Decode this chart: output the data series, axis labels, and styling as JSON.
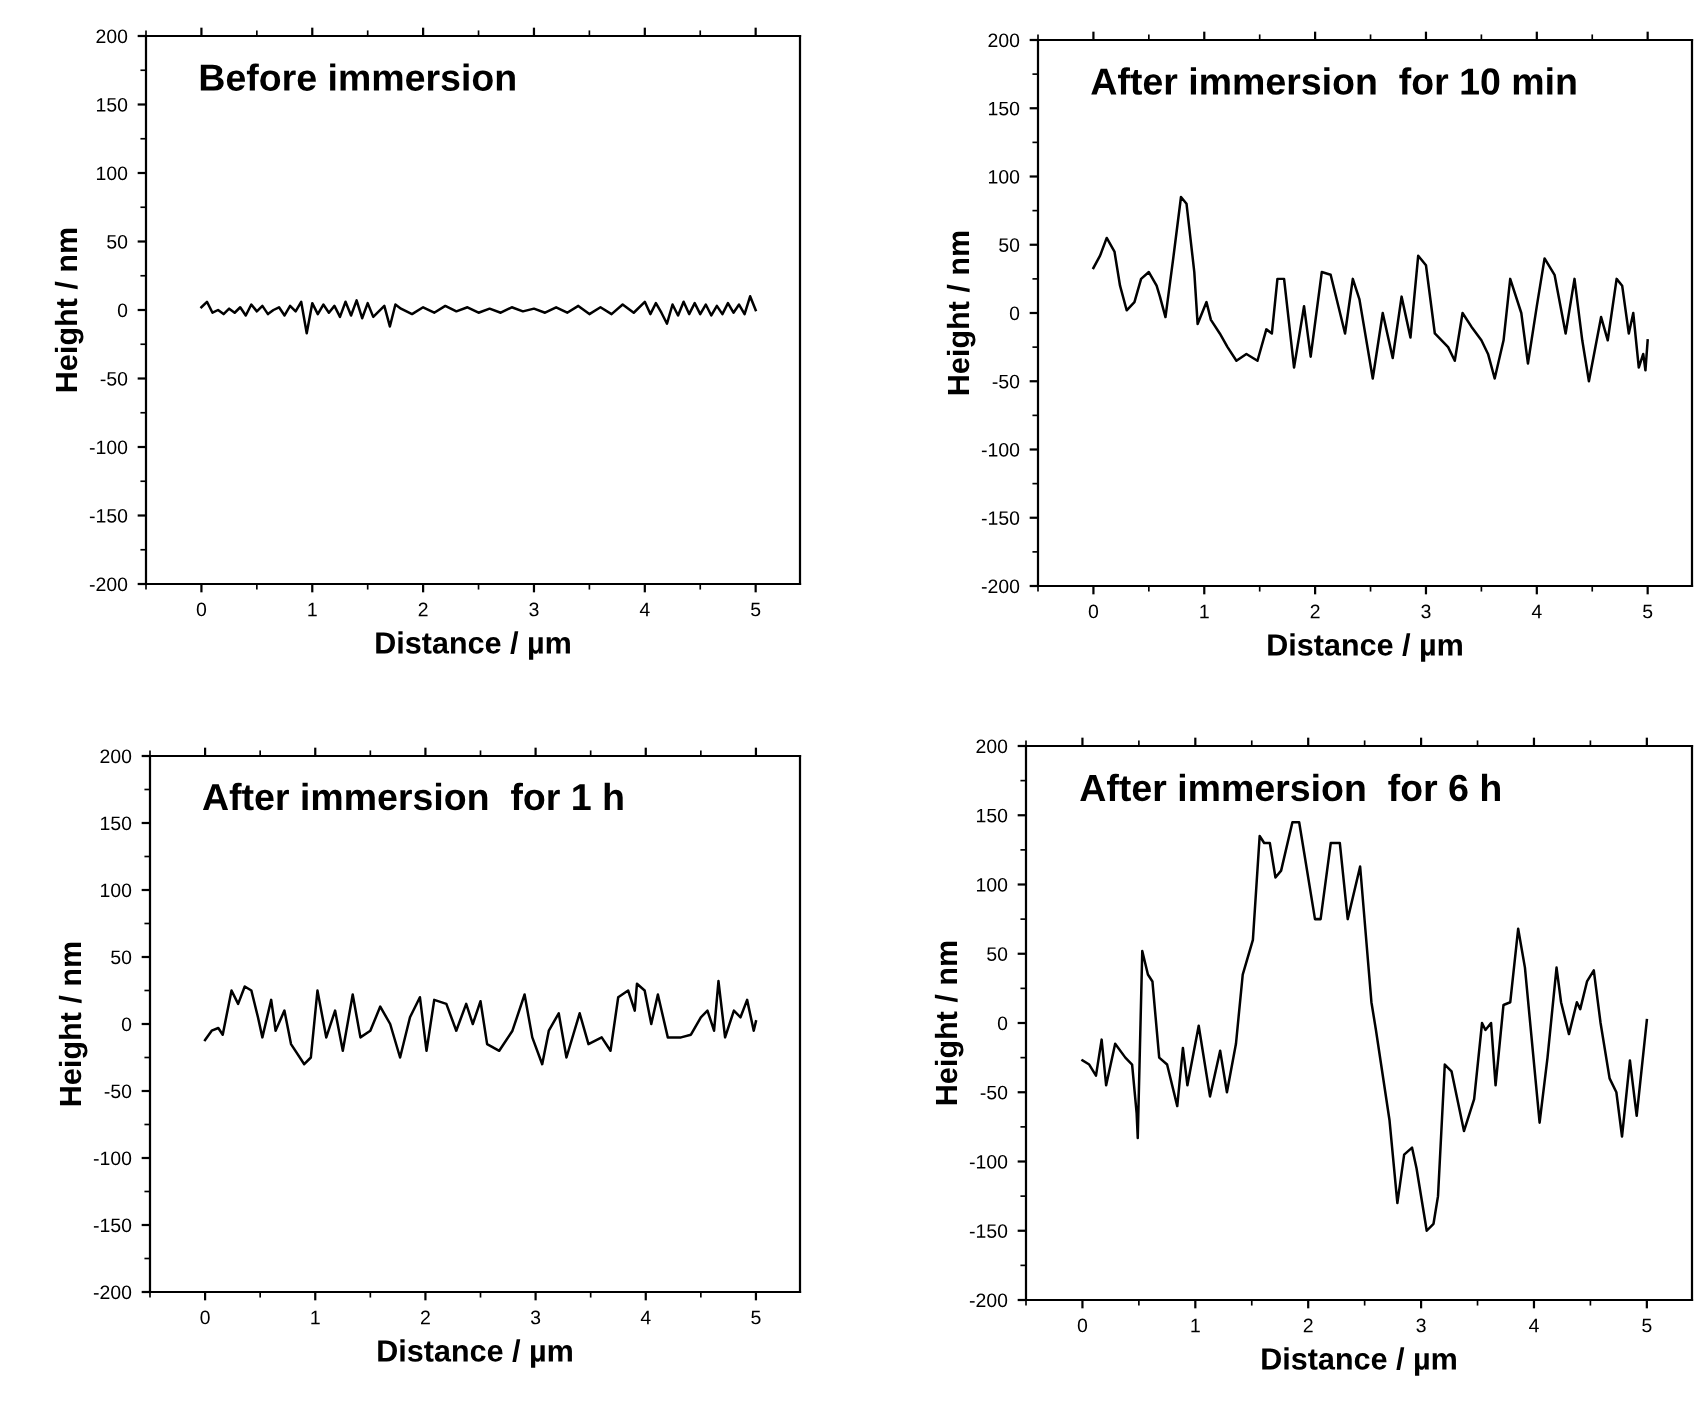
{
  "chart_data": [
    {
      "type": "line",
      "title": "Before immersion",
      "xlabel": "Distance / µm",
      "ylabel": "Height / nm",
      "xlim": [
        -0.5,
        5.4
      ],
      "ylim": [
        -200,
        200
      ],
      "xticks": [
        0,
        1,
        2,
        3,
        4,
        5
      ],
      "yticks": [
        -200,
        -150,
        -100,
        -50,
        0,
        50,
        100,
        150,
        200
      ],
      "grid": false,
      "marker": "none",
      "line_style": "solid",
      "series": [
        {
          "color": "#000000",
          "x": [
            0,
            0.05,
            0.1,
            0.15,
            0.2,
            0.25,
            0.3,
            0.35,
            0.4,
            0.45,
            0.5,
            0.55,
            0.6,
            0.65,
            0.7,
            0.75,
            0.8,
            0.85,
            0.9,
            0.95,
            1.0,
            1.05,
            1.1,
            1.15,
            1.2,
            1.25,
            1.3,
            1.35,
            1.4,
            1.45,
            1.5,
            1.55,
            1.6,
            1.65,
            1.7,
            1.75,
            1.8,
            1.9,
            2.0,
            2.1,
            2.2,
            2.3,
            2.4,
            2.5,
            2.6,
            2.7,
            2.8,
            2.9,
            3.0,
            3.1,
            3.2,
            3.3,
            3.4,
            3.5,
            3.6,
            3.7,
            3.8,
            3.9,
            4.0,
            4.05,
            4.1,
            4.15,
            4.2,
            4.25,
            4.3,
            4.35,
            4.4,
            4.45,
            4.5,
            4.55,
            4.6,
            4.65,
            4.7,
            4.75,
            4.8,
            4.85,
            4.9,
            4.95,
            5.0
          ],
          "values": [
            2,
            6,
            -2,
            0,
            -3,
            1,
            -2,
            2,
            -4,
            4,
            -1,
            3,
            -3,
            0,
            2,
            -4,
            3,
            -1,
            6,
            -17,
            5,
            -3,
            4,
            -2,
            3,
            -5,
            6,
            -4,
            7,
            -6,
            5,
            -5,
            -1,
            3,
            -12,
            4,
            1,
            -3,
            2,
            -2,
            3,
            -1,
            2,
            -2,
            1,
            -2,
            2,
            -1,
            1,
            -2,
            2,
            -2,
            3,
            -3,
            2,
            -3,
            4,
            -2,
            6,
            -3,
            5,
            -2,
            -10,
            4,
            -4,
            6,
            -3,
            5,
            -3,
            4,
            -4,
            3,
            -3,
            5,
            -2,
            4,
            -3,
            10,
            0
          ]
        }
      ]
    },
    {
      "type": "line",
      "title": "After immersion  for 10 min",
      "xlabel": "Distance / µm",
      "ylabel": "Height / nm",
      "xlim": [
        -0.5,
        5.4
      ],
      "ylim": [
        -200,
        200
      ],
      "xticks": [
        0,
        1,
        2,
        3,
        4,
        5
      ],
      "yticks": [
        -200,
        -150,
        -100,
        -50,
        0,
        50,
        100,
        150,
        200
      ],
      "grid": false,
      "marker": "none",
      "line_style": "solid",
      "series": [
        {
          "color": "#000000",
          "x": [
            0,
            0.06,
            0.12,
            0.19,
            0.24,
            0.3,
            0.37,
            0.43,
            0.5,
            0.57,
            0.6,
            0.65,
            0.72,
            0.79,
            0.84,
            0.91,
            0.94,
            1.02,
            1.06,
            1.14,
            1.21,
            1.29,
            1.38,
            1.48,
            1.56,
            1.61,
            1.66,
            1.72,
            1.81,
            1.9,
            1.96,
            2.06,
            2.14,
            2.21,
            2.27,
            2.34,
            2.4,
            2.52,
            2.61,
            2.7,
            2.78,
            2.86,
            2.93,
            3.0,
            3.08,
            3.2,
            3.26,
            3.33,
            3.41,
            3.5,
            3.56,
            3.62,
            3.7,
            3.76,
            3.86,
            3.92,
            4.0,
            4.07,
            4.16,
            4.26,
            4.34,
            4.41,
            4.47,
            4.58,
            4.64,
            4.72,
            4.77,
            4.83,
            4.87,
            4.92,
            4.96,
            4.98,
            5.0
          ],
          "values": [
            33,
            42,
            55,
            45,
            20,
            2,
            8,
            25,
            30,
            20,
            12,
            -3,
            40,
            85,
            80,
            30,
            -8,
            8,
            -5,
            -15,
            -25,
            -35,
            -30,
            -35,
            -12,
            -15,
            25,
            25,
            -40,
            5,
            -32,
            30,
            28,
            5,
            -15,
            25,
            10,
            -48,
            0,
            -33,
            12,
            -18,
            42,
            35,
            -15,
            -25,
            -35,
            0,
            -10,
            -20,
            -30,
            -48,
            -20,
            25,
            0,
            -37,
            5,
            40,
            28,
            -15,
            25,
            -20,
            -50,
            -3,
            -20,
            25,
            20,
            -15,
            0,
            -40,
            -30,
            -42,
            -20
          ]
        }
      ]
    },
    {
      "type": "line",
      "title": "After immersion  for 1 h",
      "xlabel": "Distance / µm",
      "ylabel": "Height / nm",
      "xlim": [
        -0.5,
        5.4
      ],
      "ylim": [
        -200,
        200
      ],
      "xticks": [
        0,
        1,
        2,
        3,
        4,
        5
      ],
      "yticks": [
        -200,
        -150,
        -100,
        -50,
        0,
        50,
        100,
        150,
        200
      ],
      "grid": false,
      "marker": "none",
      "line_style": "solid",
      "series": [
        {
          "color": "#000000",
          "x": [
            0,
            0.06,
            0.12,
            0.16,
            0.24,
            0.3,
            0.36,
            0.42,
            0.48,
            0.52,
            0.6,
            0.64,
            0.72,
            0.78,
            0.9,
            0.96,
            1.02,
            1.1,
            1.18,
            1.25,
            1.34,
            1.41,
            1.5,
            1.59,
            1.68,
            1.77,
            1.86,
            1.95,
            2.01,
            2.08,
            2.19,
            2.28,
            2.37,
            2.43,
            2.5,
            2.56,
            2.67,
            2.79,
            2.9,
            2.97,
            3.06,
            3.12,
            3.21,
            3.28,
            3.4,
            3.48,
            3.6,
            3.68,
            3.75,
            3.84,
            3.9,
            3.92,
            3.99,
            4.05,
            4.11,
            4.2,
            4.32,
            4.41,
            4.5,
            4.56,
            4.62,
            4.66,
            4.72,
            4.8,
            4.86,
            4.92,
            4.98,
            5.0
          ],
          "values": [
            -12,
            -5,
            -3,
            -8,
            25,
            15,
            28,
            25,
            5,
            -10,
            18,
            -5,
            10,
            -15,
            -30,
            -25,
            25,
            -10,
            10,
            -20,
            22,
            -10,
            -5,
            13,
            0,
            -25,
            5,
            20,
            -20,
            18,
            15,
            -5,
            15,
            0,
            17,
            -15,
            -20,
            -5,
            22,
            -10,
            -30,
            -5,
            8,
            -25,
            8,
            -15,
            -10,
            -20,
            20,
            25,
            10,
            30,
            25,
            0,
            22,
            -10,
            -10,
            -8,
            5,
            10,
            -5,
            32,
            -10,
            10,
            5,
            18,
            -5,
            2
          ]
        }
      ]
    },
    {
      "type": "line",
      "title": "After immersion  for 6 h",
      "xlabel": "Distance / µm",
      "ylabel": "Height / nm",
      "xlim": [
        -0.5,
        5.4
      ],
      "ylim": [
        -200,
        200
      ],
      "xticks": [
        0,
        1,
        2,
        3,
        4,
        5
      ],
      "yticks": [
        -200,
        -150,
        -100,
        -50,
        0,
        50,
        100,
        150,
        200
      ],
      "grid": false,
      "marker": "none",
      "line_style": "solid",
      "series": [
        {
          "color": "#000000",
          "x": [
            0,
            0.06,
            0.12,
            0.17,
            0.21,
            0.29,
            0.38,
            0.44,
            0.48,
            0.49,
            0.53,
            0.58,
            0.62,
            0.68,
            0.75,
            0.84,
            0.89,
            0.93,
            1.03,
            1.13,
            1.22,
            1.28,
            1.36,
            1.42,
            1.51,
            1.57,
            1.61,
            1.66,
            1.71,
            1.76,
            1.86,
            1.92,
            1.97,
            2.06,
            2.11,
            2.2,
            2.28,
            2.35,
            2.46,
            2.56,
            2.6,
            2.72,
            2.79,
            2.85,
            2.92,
            2.96,
            3.05,
            3.11,
            3.15,
            3.21,
            3.27,
            3.38,
            3.47,
            3.54,
            3.57,
            3.62,
            3.66,
            3.73,
            3.79,
            3.86,
            3.92,
            4.05,
            4.12,
            4.2,
            4.24,
            4.31,
            4.38,
            4.41,
            4.47,
            4.53,
            4.59,
            4.67,
            4.73,
            4.78,
            4.85,
            4.91,
            5.0
          ],
          "values": [
            -27,
            -30,
            -38,
            -12,
            -45,
            -15,
            -25,
            -30,
            -65,
            -83,
            52,
            35,
            30,
            -25,
            -30,
            -60,
            -18,
            -45,
            -2,
            -53,
            -20,
            -50,
            -15,
            35,
            60,
            135,
            130,
            130,
            105,
            110,
            145,
            145,
            120,
            75,
            75,
            130,
            130,
            75,
            113,
            15,
            -5,
            -70,
            -130,
            -95,
            -90,
            -105,
            -150,
            -145,
            -125,
            -30,
            -35,
            -78,
            -55,
            0,
            -5,
            0,
            -45,
            13,
            15,
            68,
            40,
            -72,
            -25,
            40,
            15,
            -8,
            15,
            10,
            30,
            38,
            0,
            -40,
            -50,
            -82,
            -27,
            -67,
            2
          ]
        }
      ]
    }
  ]
}
